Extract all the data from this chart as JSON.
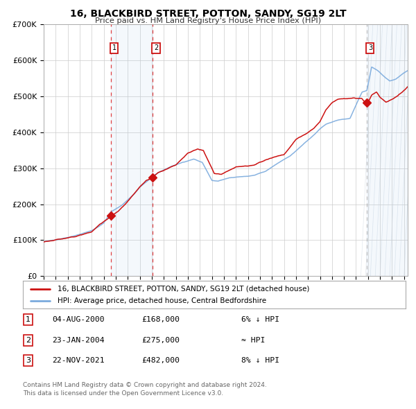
{
  "title": "16, BLACKBIRD STREET, POTTON, SANDY, SG19 2LT",
  "subtitle": "Price paid vs. HM Land Registry's House Price Index (HPI)",
  "ylim": [
    0,
    700000
  ],
  "yticks": [
    0,
    100000,
    200000,
    300000,
    400000,
    500000,
    600000,
    700000
  ],
  "ytick_labels": [
    "£0",
    "£100K",
    "£200K",
    "£300K",
    "£400K",
    "£500K",
    "£600K",
    "£700K"
  ],
  "xlim_start": 1995.0,
  "xlim_end": 2025.3,
  "hpi_color": "#7aaadd",
  "price_color": "#cc1111",
  "marker_color": "#cc1111",
  "bg_color": "#ffffff",
  "grid_color": "#cccccc",
  "transaction1_x": 2000.59,
  "transaction1_y": 168000,
  "transaction2_x": 2004.07,
  "transaction2_y": 275000,
  "transaction3_x": 2021.9,
  "transaction3_y": 482000,
  "legend_line1": "16, BLACKBIRD STREET, POTTON, SANDY, SG19 2LT (detached house)",
  "legend_line2": "HPI: Average price, detached house, Central Bedfordshire",
  "table_rows": [
    [
      "1",
      "04-AUG-2000",
      "£168,000",
      "6% ↓ HPI"
    ],
    [
      "2",
      "23-JAN-2004",
      "£275,000",
      "≈ HPI"
    ],
    [
      "3",
      "22-NOV-2021",
      "£482,000",
      "8% ↓ HPI"
    ]
  ],
  "footnote1": "Contains HM Land Registry data © Crown copyright and database right 2024.",
  "footnote2": "This data is licensed under the Open Government Licence v3.0.",
  "key_years_hpi": [
    1995.0,
    1996.0,
    1997.0,
    1998.0,
    1999.0,
    2000.0,
    2000.59,
    2001.5,
    2002.5,
    2003.0,
    2004.07,
    2004.5,
    2005.5,
    2006.5,
    2007.5,
    2008.2,
    2009.0,
    2009.5,
    2010.5,
    2011.5,
    2012.5,
    2013.5,
    2014.5,
    2015.5,
    2016.5,
    2017.5,
    2018.0,
    2018.5,
    2019.5,
    2020.5,
    2021.5,
    2021.9,
    2022.3,
    2022.8,
    2023.3,
    2023.8,
    2024.3,
    2024.8,
    2025.3
  ],
  "key_vals_hpi": [
    96000,
    101000,
    108000,
    116000,
    126000,
    148000,
    179000,
    198000,
    228000,
    248000,
    278000,
    288000,
    305000,
    318000,
    328000,
    320000,
    270000,
    268000,
    278000,
    282000,
    285000,
    296000,
    318000,
    338000,
    368000,
    398000,
    415000,
    428000,
    440000,
    445000,
    518000,
    522000,
    588000,
    578000,
    562000,
    548000,
    552000,
    565000,
    575000
  ],
  "key_years_price": [
    1995.0,
    1996.0,
    1997.0,
    1998.0,
    1999.0,
    1999.7,
    2000.59,
    2001.2,
    2001.8,
    2002.5,
    2003.0,
    2003.5,
    2004.07,
    2004.5,
    2005.0,
    2006.0,
    2007.0,
    2007.8,
    2008.3,
    2008.8,
    2009.2,
    2009.8,
    2010.5,
    2011.0,
    2011.8,
    2012.5,
    2013.0,
    2014.0,
    2015.0,
    2016.0,
    2016.8,
    2017.5,
    2018.0,
    2018.5,
    2019.0,
    2019.5,
    2020.0,
    2020.8,
    2021.5,
    2021.9,
    2022.3,
    2022.7,
    2023.0,
    2023.5,
    2024.0,
    2024.5,
    2025.0,
    2025.3
  ],
  "key_vals_price": [
    95000,
    100000,
    107000,
    115000,
    124000,
    145000,
    168000,
    182000,
    202000,
    228000,
    248000,
    265000,
    275000,
    288000,
    295000,
    310000,
    345000,
    355000,
    350000,
    315000,
    285000,
    283000,
    295000,
    305000,
    308000,
    310000,
    318000,
    330000,
    340000,
    382000,
    398000,
    415000,
    435000,
    468000,
    488000,
    498000,
    500000,
    502000,
    500000,
    482000,
    510000,
    520000,
    505000,
    492000,
    500000,
    510000,
    525000,
    535000
  ]
}
